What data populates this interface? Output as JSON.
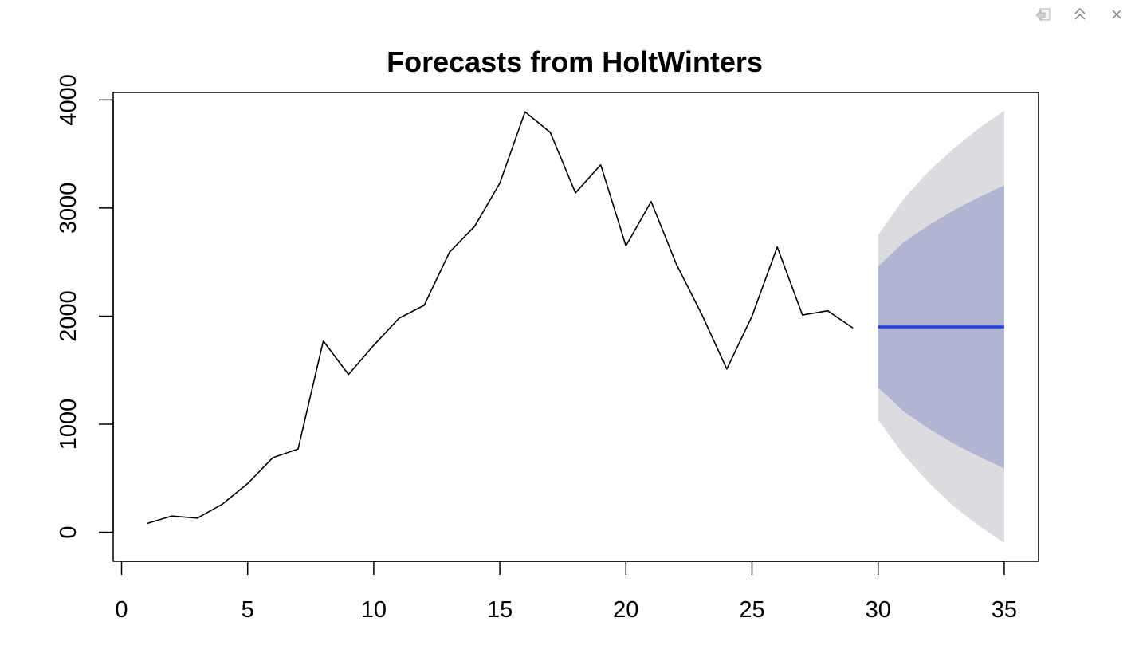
{
  "toolbar": {
    "icons": [
      "export-icon",
      "collapse-icon",
      "close-icon"
    ]
  },
  "chart_data": {
    "type": "line",
    "title": "Forecasts from HoltWinters",
    "xlabel": "",
    "ylabel": "",
    "xlim": [
      0,
      35
    ],
    "ylim": [
      -100,
      4000
    ],
    "xticks": [
      0,
      5,
      10,
      15,
      20,
      25,
      30,
      35
    ],
    "yticks": [
      0,
      1000,
      2000,
      3000,
      4000
    ],
    "grid": false,
    "series": [
      {
        "kind": "observed",
        "color": "#000000",
        "x": [
          1,
          2,
          3,
          4,
          5,
          6,
          7,
          8,
          9,
          10,
          11,
          12,
          13,
          14,
          15,
          16,
          17,
          18,
          19,
          20,
          21,
          22,
          23,
          24,
          25,
          26,
          27,
          28,
          29
        ],
        "values": [
          80,
          150,
          130,
          260,
          450,
          690,
          770,
          1770,
          1460,
          1730,
          1980,
          2100,
          2590,
          2830,
          3230,
          3890,
          3700,
          3140,
          3400,
          2650,
          3060,
          2480,
          2020,
          1510,
          2000,
          2640,
          2010,
          2050,
          1890
        ]
      },
      {
        "kind": "forecast",
        "color": "#1f3fe6",
        "x": [
          30,
          31,
          32,
          33,
          34,
          35
        ],
        "values": [
          1900,
          1900,
          1900,
          1900,
          1900,
          1900
        ]
      }
    ],
    "intervals": [
      {
        "level": "95",
        "color": "#dbdbe0",
        "x": [
          30,
          31,
          32,
          33,
          34,
          35
        ],
        "lower": [
          1040,
          720,
          460,
          240,
          60,
          -100
        ],
        "upper": [
          2750,
          3080,
          3340,
          3550,
          3740,
          3900
        ]
      },
      {
        "level": "80",
        "color": "#b1b5d1",
        "x": [
          30,
          31,
          32,
          33,
          34,
          35
        ],
        "lower": [
          1340,
          1120,
          960,
          820,
          700,
          590
        ],
        "upper": [
          2460,
          2680,
          2840,
          2980,
          3100,
          3210
        ]
      }
    ]
  }
}
